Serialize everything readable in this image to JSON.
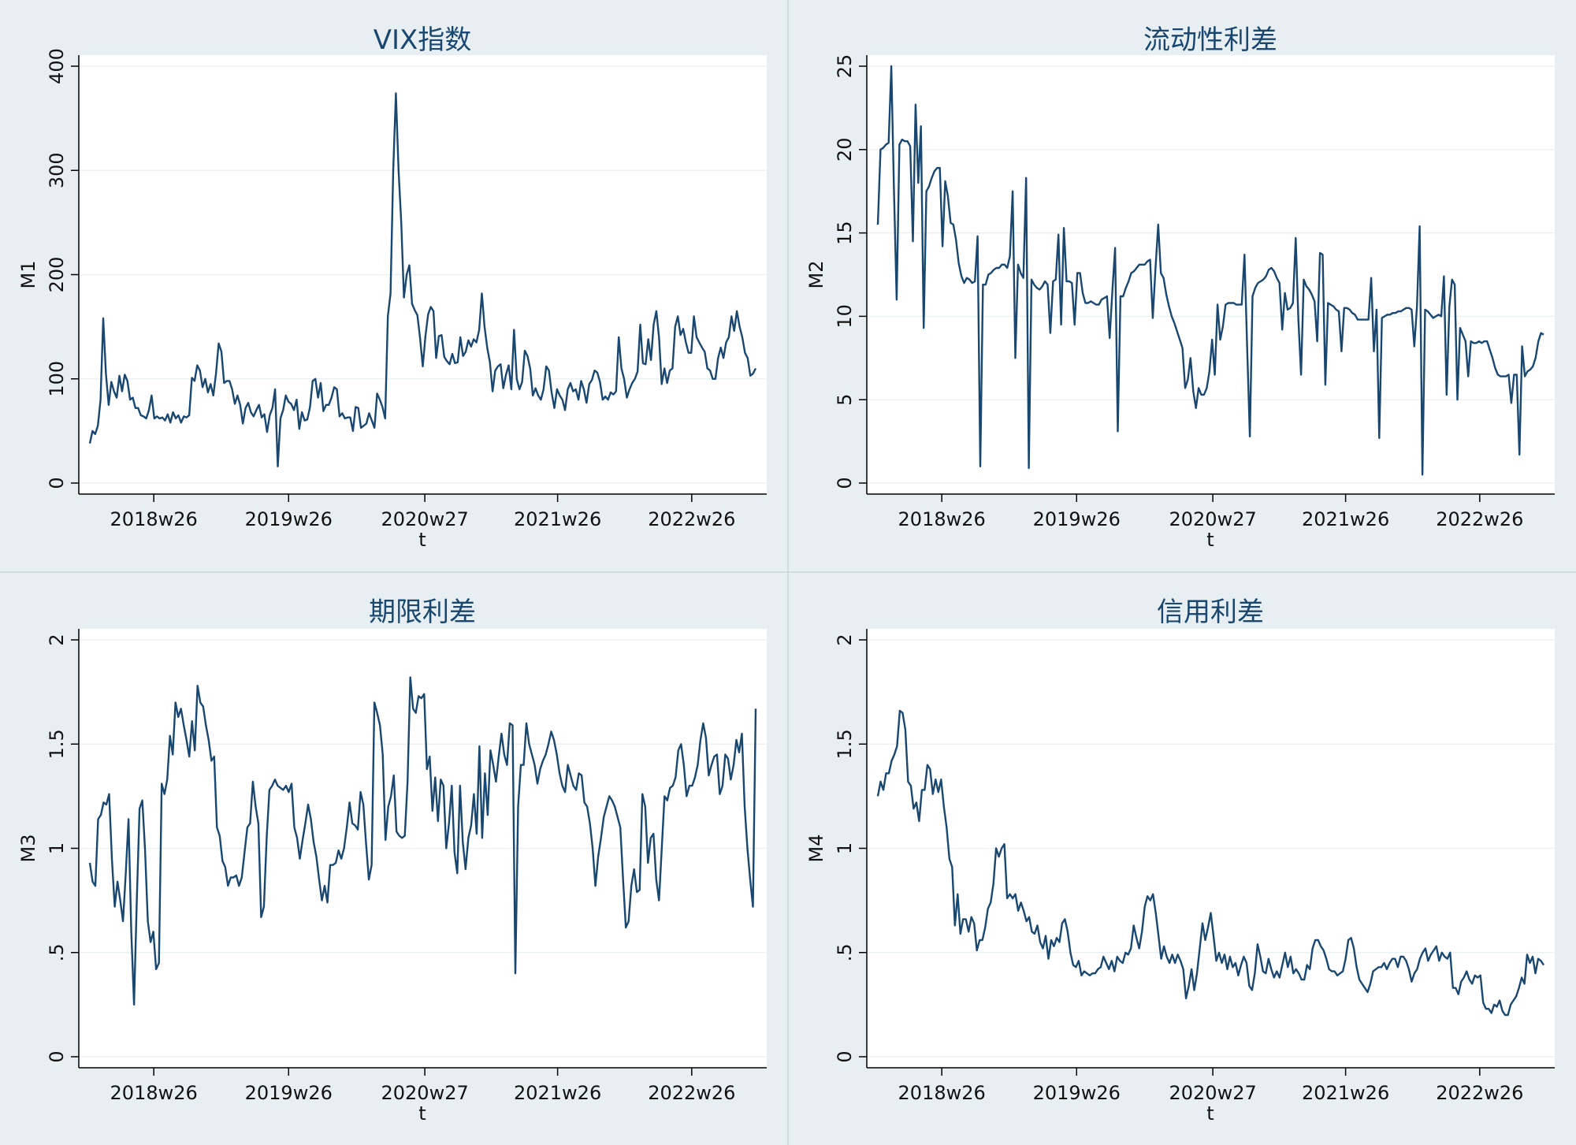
{
  "chart_data": [
    {
      "type": "line",
      "title": "VIX指数",
      "xlabel": "t",
      "ylabel": "M1",
      "ylim": [
        0,
        400
      ],
      "yticks": [
        "0",
        "100",
        "200",
        "300",
        "400"
      ],
      "xticks": [
        "2018w26",
        "2019w26",
        "2020w27",
        "2021w26",
        "2022w26"
      ],
      "xlim": [
        "2017w45",
        "2023w12"
      ],
      "series": [
        {
          "name": "M1",
          "values": [
            38,
            50,
            47,
            55,
            80,
            158,
            105,
            75,
            97,
            88,
            82,
            103,
            88,
            104,
            98,
            80,
            82,
            72,
            72,
            65,
            64,
            62,
            70,
            84,
            62,
            64,
            62,
            63,
            60,
            66,
            58,
            68,
            62,
            65,
            58,
            64,
            63,
            65,
            101,
            98,
            113,
            108,
            92,
            100,
            87,
            95,
            84,
            105,
            134,
            126,
            96,
            98,
            98,
            90,
            76,
            84,
            75,
            57,
            72,
            77,
            68,
            64,
            70,
            75,
            63,
            66,
            49,
            65,
            72,
            90,
            16,
            62,
            70,
            84,
            78,
            76,
            70,
            80,
            52,
            68,
            60,
            61,
            73,
            98,
            100,
            82,
            96,
            69,
            75,
            75,
            82,
            92,
            90,
            64,
            67,
            62,
            63,
            63,
            50,
            73,
            72,
            53,
            55,
            57,
            67,
            60,
            53,
            86,
            80,
            73,
            62,
            160,
            182,
            300,
            374,
            300,
            250,
            178,
            200,
            209,
            172,
            166,
            161,
            139,
            112,
            141,
            162,
            169,
            165,
            120,
            141,
            142,
            121,
            117,
            114,
            124,
            115,
            116,
            140,
            122,
            126,
            137,
            131,
            138,
            135,
            147,
            182,
            150,
            130,
            116,
            88,
            108,
            112,
            114,
            91,
            104,
            113,
            90,
            147,
            100,
            90,
            97,
            127,
            122,
            110,
            84,
            91,
            84,
            80,
            90,
            112,
            108,
            87,
            72,
            90,
            84,
            80,
            70,
            90,
            96,
            88,
            90,
            80,
            98,
            90,
            77,
            95,
            99,
            108,
            106,
            97,
            80,
            83,
            80,
            87,
            85,
            88,
            140,
            110,
            100,
            82,
            90,
            96,
            100,
            107,
            152,
            115,
            114,
            138,
            118,
            152,
            165,
            140,
            95,
            110,
            96,
            108,
            110,
            150,
            160,
            142,
            148,
            135,
            125,
            125,
            160,
            140,
            135,
            130,
            126,
            110,
            108,
            100,
            100,
            120,
            130,
            120,
            135,
            140,
            160,
            146,
            165,
            150,
            140,
            125,
            120,
            103,
            105,
            110
          ]
        }
      ]
    },
    {
      "type": "line",
      "title": "流动性利差",
      "xlabel": "t",
      "ylabel": "M2",
      "ylim": [
        0,
        25
      ],
      "yticks": [
        "0",
        "5",
        "10",
        "15",
        "20",
        "25"
      ],
      "xticks": [
        "2018w26",
        "2019w26",
        "2020w27",
        "2021w26",
        "2022w26"
      ],
      "xlim": [
        "2017w45",
        "2023w12"
      ],
      "series": [
        {
          "name": "M2",
          "values": [
            15.5,
            20,
            20.1,
            20.3,
            20.4,
            25,
            17.5,
            11,
            20.3,
            20.6,
            20.5,
            20.5,
            20.2,
            14.5,
            22.7,
            18,
            21.4,
            9.3,
            17.5,
            17.8,
            18.3,
            18.7,
            18.9,
            18.9,
            14.2,
            18.1,
            17.2,
            15.6,
            15.5,
            14.6,
            13.2,
            12.4,
            12,
            12.3,
            12.2,
            12,
            12.1,
            14.8,
            1,
            11.9,
            11.9,
            12.5,
            12.6,
            12.8,
            12.9,
            12.9,
            13.1,
            13.1,
            12.9,
            13.6,
            17.5,
            7.5,
            13.1,
            12.6,
            12.3,
            18.3,
            0.9,
            12.2,
            11.9,
            11.7,
            11.6,
            11.8,
            12.1,
            11.9,
            9,
            12.1,
            12.2,
            14.9,
            9.5,
            15.3,
            12.1,
            12.1,
            12,
            9.5,
            12.6,
            12.6,
            11.4,
            10.8,
            10.8,
            10.9,
            10.8,
            10.7,
            10.7,
            11,
            11.1,
            11.2,
            8.7,
            11.5,
            14.1,
            3.1,
            11.2,
            11.2,
            11.7,
            12.1,
            12.6,
            12.7,
            12.9,
            13.1,
            13.1,
            13.1,
            13.3,
            13.4,
            9.9,
            12.9,
            15.5,
            12.6,
            12.3,
            11.3,
            10.6,
            10,
            9.6,
            9.1,
            8.6,
            8.1,
            5.7,
            6.2,
            7.5,
            5.5,
            4.5,
            5.7,
            5.3,
            5.3,
            5.7,
            6.7,
            8.6,
            6.5,
            10.7,
            8.6,
            9.4,
            10.7,
            10.8,
            10.8,
            10.8,
            10.7,
            10.7,
            10.7,
            13.7,
            8.1,
            2.8,
            11.2,
            11.7,
            12,
            12.1,
            12.2,
            12.4,
            12.8,
            12.9,
            12.7,
            12.3,
            12,
            9.2,
            11.4,
            10.4,
            10.5,
            10.8,
            14.7,
            9.8,
            6.5,
            12.2,
            11.8,
            11.6,
            11.3,
            10.9,
            8.5,
            13.8,
            13.7,
            5.9,
            10.8,
            10.7,
            10.6,
            10.4,
            10.3,
            7.9,
            10.5,
            10.5,
            10.4,
            10.2,
            10.1,
            9.8,
            9.8,
            9.8,
            9.8,
            9.8,
            12.3,
            7.9,
            10.4,
            2.7,
            9.9,
            10,
            10.1,
            10.1,
            10.2,
            10.2,
            10.3,
            10.3,
            10.4,
            10.5,
            10.5,
            10.4,
            8.2,
            10.6,
            15.4,
            0.5,
            10.4,
            10.3,
            10.1,
            9.9,
            10,
            10.1,
            10,
            12.4,
            5.3,
            10.6,
            12.2,
            11.9,
            5,
            9.3,
            8.9,
            8.5,
            6.4,
            8.5,
            8.4,
            8.4,
            8.5,
            8.4,
            8.5,
            8.5,
            8,
            7.5,
            6.9,
            6.5,
            6.4,
            6.4,
            6.4,
            6.5,
            4.8,
            6.5,
            6.5,
            1.7,
            8.2,
            6.4,
            6.7,
            6.8,
            7,
            7.5,
            8.5,
            9,
            8.9
          ]
        }
      ]
    },
    {
      "type": "line",
      "title": "期限利差",
      "xlabel": "t",
      "ylabel": "M3",
      "ylim": [
        0,
        2
      ],
      "yticks": [
        "0",
        ".5",
        "1",
        "1.5",
        "2"
      ],
      "xticks": [
        "2018w26",
        "2019w26",
        "2020w27",
        "2021w26",
        "2022w26"
      ],
      "xlim": [
        "2017w45",
        "2023w12"
      ],
      "series": [
        {
          "name": "M3",
          "values": [
            0.93,
            0.84,
            0.82,
            1.14,
            1.16,
            1.22,
            1.21,
            1.26,
            0.95,
            0.72,
            0.84,
            0.75,
            0.65,
            0.88,
            1.14,
            0.6,
            0.25,
            0.75,
            1.19,
            1.23,
            0.99,
            0.65,
            0.55,
            0.6,
            0.42,
            0.45,
            1.31,
            1.26,
            1.33,
            1.54,
            1.45,
            1.7,
            1.63,
            1.67,
            1.59,
            1.52,
            1.44,
            1.61,
            1.47,
            1.78,
            1.7,
            1.68,
            1.59,
            1.52,
            1.42,
            1.44,
            1.1,
            1.06,
            0.94,
            0.91,
            0.82,
            0.86,
            0.86,
            0.87,
            0.82,
            0.86,
            0.98,
            1.1,
            1.12,
            1.32,
            1.2,
            1.12,
            0.67,
            0.72,
            1.05,
            1.28,
            1.3,
            1.33,
            1.3,
            1.29,
            1.28,
            1.3,
            1.27,
            1.31,
            1.1,
            1.05,
            0.95,
            1.04,
            1.12,
            1.21,
            1.14,
            1.03,
            0.96,
            0.85,
            0.75,
            0.82,
            0.74,
            0.92,
            0.92,
            0.93,
            0.99,
            0.95,
            1,
            1.1,
            1.22,
            1.12,
            1.11,
            1.09,
            1.27,
            1.21,
            1.02,
            0.85,
            0.92,
            1.7,
            1.65,
            1.59,
            1.45,
            1.04,
            1.2,
            1.25,
            1.35,
            1.08,
            1.06,
            1.05,
            1.06,
            1.32,
            1.82,
            1.67,
            1.65,
            1.73,
            1.72,
            1.74,
            1.38,
            1.44,
            1.18,
            1.34,
            1.13,
            1.33,
            1.3,
            1.0,
            1.12,
            1.3,
            0.98,
            0.88,
            1.3,
            1.03,
            0.9,
            1.05,
            1.11,
            1.26,
            1.07,
            1.49,
            1.05,
            1.36,
            1.16,
            1.47,
            1.4,
            1.32,
            1.44,
            1.55,
            1.45,
            1.4,
            1.6,
            1.59,
            0.4,
            1.2,
            1.4,
            1.4,
            1.6,
            1.5,
            1.45,
            1.4,
            1.31,
            1.38,
            1.42,
            1.45,
            1.5,
            1.56,
            1.52,
            1.45,
            1.36,
            1.3,
            1.27,
            1.4,
            1.35,
            1.3,
            1.28,
            1.36,
            1.35,
            1.22,
            1.2,
            1.12,
            1.0,
            0.82,
            0.96,
            1.05,
            1.15,
            1.2,
            1.25,
            1.23,
            1.2,
            1.15,
            1.1,
            0.85,
            0.62,
            0.65,
            0.82,
            0.9,
            0.79,
            0.8,
            1.26,
            1.2,
            0.93,
            1.05,
            1.07,
            0.85,
            0.75,
            1.0,
            1.25,
            1.23,
            1.29,
            1.3,
            1.34,
            1.47,
            1.5,
            1.4,
            1.25,
            1.3,
            1.3,
            1.34,
            1.4,
            1.52,
            1.6,
            1.53,
            1.35,
            1.4,
            1.44,
            1.45,
            1.26,
            1.3,
            1.45,
            1.43,
            1.33,
            1.4,
            1.52,
            1.46,
            1.55,
            1.2,
            1.0,
            0.85,
            0.72,
            1.67
          ]
        }
      ]
    },
    {
      "type": "line",
      "title": "信用利差",
      "xlabel": "t",
      "ylabel": "M4",
      "ylim": [
        0,
        2
      ],
      "yticks": [
        "0",
        ".5",
        "1",
        "1.5",
        "2"
      ],
      "xticks": [
        "2018w26",
        "2019w26",
        "2020w27",
        "2021w26",
        "2022w26"
      ],
      "xlim": [
        "2017w45",
        "2023w12"
      ],
      "series": [
        {
          "name": "M4",
          "values": [
            1.25,
            1.32,
            1.28,
            1.36,
            1.36,
            1.42,
            1.45,
            1.49,
            1.66,
            1.65,
            1.57,
            1.32,
            1.3,
            1.19,
            1.22,
            1.13,
            1.28,
            1.28,
            1.4,
            1.38,
            1.26,
            1.33,
            1.27,
            1.33,
            1.2,
            1.1,
            0.95,
            0.91,
            0.63,
            0.78,
            0.59,
            0.66,
            0.66,
            0.6,
            0.67,
            0.64,
            0.51,
            0.56,
            0.56,
            0.62,
            0.71,
            0.74,
            0.83,
            1.0,
            0.96,
            1.0,
            1.02,
            0.76,
            0.78,
            0.76,
            0.78,
            0.7,
            0.74,
            0.7,
            0.65,
            0.67,
            0.6,
            0.59,
            0.63,
            0.55,
            0.52,
            0.58,
            0.47,
            0.56,
            0.53,
            0.57,
            0.55,
            0.64,
            0.66,
            0.6,
            0.5,
            0.44,
            0.43,
            0.46,
            0.39,
            0.41,
            0.4,
            0.39,
            0.4,
            0.4,
            0.42,
            0.43,
            0.48,
            0.45,
            0.42,
            0.46,
            0.41,
            0.48,
            0.46,
            0.45,
            0.5,
            0.49,
            0.52,
            0.63,
            0.57,
            0.52,
            0.6,
            0.72,
            0.77,
            0.75,
            0.78,
            0.69,
            0.58,
            0.47,
            0.53,
            0.48,
            0.45,
            0.49,
            0.45,
            0.49,
            0.46,
            0.42,
            0.28,
            0.34,
            0.42,
            0.32,
            0.4,
            0.52,
            0.64,
            0.56,
            0.62,
            0.69,
            0.58,
            0.46,
            0.5,
            0.45,
            0.49,
            0.42,
            0.48,
            0.43,
            0.45,
            0.39,
            0.44,
            0.48,
            0.45,
            0.34,
            0.32,
            0.4,
            0.54,
            0.48,
            0.41,
            0.4,
            0.47,
            0.42,
            0.38,
            0.41,
            0.38,
            0.44,
            0.5,
            0.43,
            0.48,
            0.4,
            0.42,
            0.4,
            0.37,
            0.37,
            0.44,
            0.42,
            0.52,
            0.56,
            0.56,
            0.53,
            0.51,
            0.47,
            0.42,
            0.41,
            0.41,
            0.39,
            0.4,
            0.41,
            0.47,
            0.56,
            0.57,
            0.52,
            0.43,
            0.37,
            0.35,
            0.33,
            0.31,
            0.35,
            0.41,
            0.42,
            0.43,
            0.43,
            0.45,
            0.42,
            0.45,
            0.47,
            0.47,
            0.43,
            0.48,
            0.48,
            0.46,
            0.42,
            0.36,
            0.4,
            0.42,
            0.47,
            0.5,
            0.52,
            0.46,
            0.49,
            0.51,
            0.53,
            0.46,
            0.5,
            0.48,
            0.47,
            0.5,
            0.33,
            0.33,
            0.3,
            0.36,
            0.38,
            0.41,
            0.37,
            0.35,
            0.39,
            0.38,
            0.39,
            0.26,
            0.23,
            0.23,
            0.21,
            0.25,
            0.24,
            0.27,
            0.22,
            0.2,
            0.2,
            0.25,
            0.27,
            0.29,
            0.33,
            0.38,
            0.35,
            0.49,
            0.45,
            0.48,
            0.4,
            0.47,
            0.46,
            0.44
          ]
        }
      ]
    }
  ]
}
